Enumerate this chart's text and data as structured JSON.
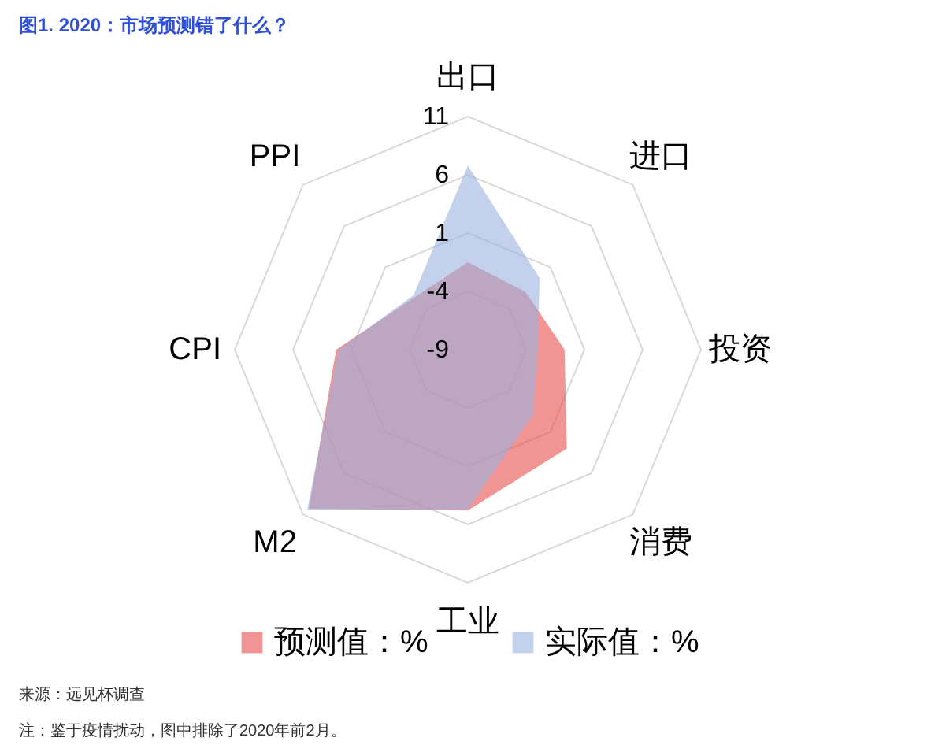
{
  "chart_data": {
    "type": "radar",
    "title": "图1. 2020：市场预测错了什么？",
    "categories": [
      "出口",
      "进口",
      "投资",
      "消费",
      "工业",
      "M2",
      "CPI",
      "PPI"
    ],
    "series": [
      {
        "name": "预测值：%",
        "color": "#e84c4c",
        "values": [
          -1.5,
          -2.0,
          -0.7,
          3.0,
          4.8,
          10.3,
          2.3,
          -2.6
        ]
      },
      {
        "name": "实际值：%",
        "color": "#9bb2df",
        "values": [
          6.8,
          -0.3,
          -3.0,
          -1.1,
          4.7,
          10.5,
          2.1,
          -2.4
        ]
      }
    ],
    "ylim": [
      -9,
      11
    ],
    "yticks": [
      -9,
      -4,
      1,
      6,
      11
    ],
    "grid": true,
    "legend": "bottom",
    "annotations": [
      "来源：远见杯调查",
      "注：鉴于疫情扰动，图中排除了2020年前2月。"
    ]
  }
}
